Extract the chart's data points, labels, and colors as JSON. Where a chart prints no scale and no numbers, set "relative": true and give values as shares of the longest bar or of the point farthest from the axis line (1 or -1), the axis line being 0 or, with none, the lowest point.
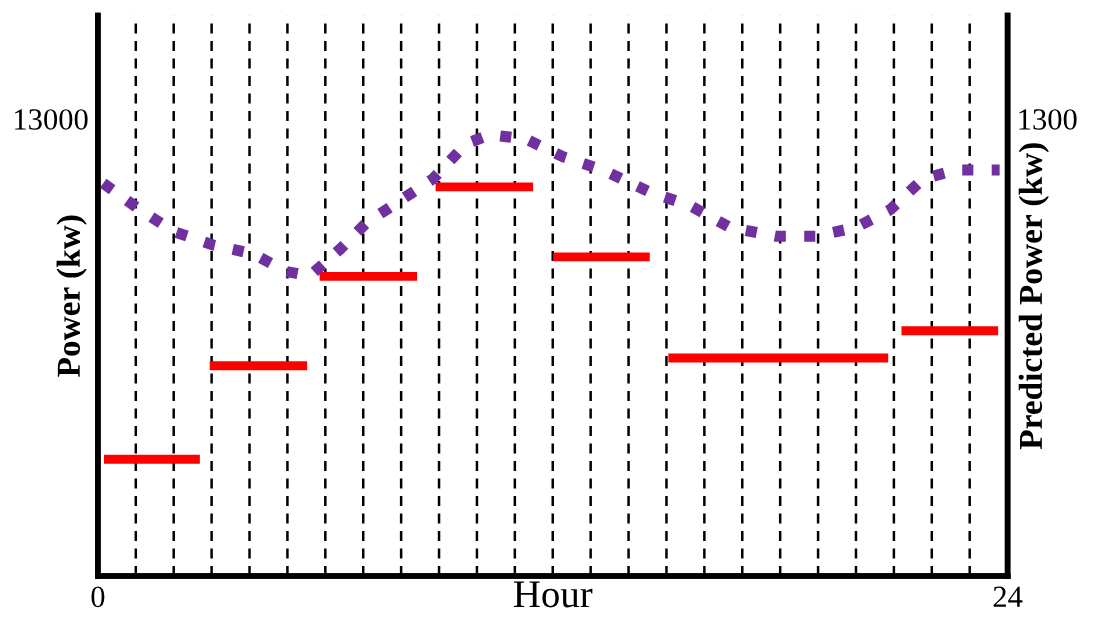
{
  "chart_data": {
    "type": "line",
    "relative": true,
    "xlabel": "Hour",
    "ylabel": "Power (kw)",
    "y2label": "Predicted Power (kw)",
    "annotations": [
      "13000",
      "1300"
    ],
    "xlim": [
      0,
      24
    ],
    "xticks": [
      0,
      {
        "value": 1,
        "label": null
      },
      {
        "value": 2,
        "label": null
      },
      {
        "value": 3,
        "label": null
      },
      {
        "value": 4,
        "label": null
      },
      {
        "value": 5,
        "label": null
      },
      {
        "value": 6,
        "label": null
      },
      {
        "value": 7,
        "label": null
      },
      {
        "value": 8,
        "label": null
      },
      {
        "value": 9,
        "label": null
      },
      {
        "value": 10,
        "label": null
      },
      {
        "value": 11,
        "label": null
      },
      {
        "value": 12,
        "label": null
      },
      {
        "value": 13,
        "label": null
      },
      {
        "value": 14,
        "label": null
      },
      {
        "value": 15,
        "label": null
      },
      {
        "value": 16,
        "label": null
      },
      {
        "value": 17,
        "label": null
      },
      {
        "value": 18,
        "label": null
      },
      {
        "value": 19,
        "label": null
      },
      {
        "value": 20,
        "label": null
      },
      {
        "value": 21,
        "label": null
      },
      {
        "value": 22,
        "label": null
      },
      {
        "value": 23,
        "label": null
      },
      24
    ],
    "grid": "x",
    "series": [
      {
        "color": "#ff0000",
        "line_style": "solid",
        "x": [
          0.16,
          2.69,
          2.8,
          2.95,
          5.52,
          5.7,
          5.85,
          8.42,
          8.7,
          8.91,
          11.48,
          11.7,
          12.01,
          14.56,
          14.8,
          15.05,
          20.85,
          21.0,
          21.2,
          23.75
        ],
        "values": [
          0.3,
          0.3,
          null,
          0.54,
          0.54,
          null,
          0.77,
          0.77,
          null,
          1,
          1,
          null,
          0.82,
          0.82,
          null,
          0.56,
          0.56,
          null,
          0.63,
          0.63
        ]
      },
      {
        "color": "#7030a0",
        "line_style": "dotted",
        "axis": "y2",
        "x": [
          0.14,
          1.11,
          2.02,
          3.04,
          4.1,
          4.97,
          5.59,
          6.38,
          7.08,
          7.96,
          8.84,
          9.72,
          10.34,
          11.3,
          12.27,
          13.33,
          14.56,
          15.61,
          16.67,
          17.9,
          18.95,
          20.0,
          20.9,
          21.77,
          22.64,
          23.79
        ],
        "values": [
          0.89,
          0.83,
          0.78,
          0.75,
          0.73,
          0.69,
          0.68,
          0.74,
          0.8,
          0.85,
          0.9,
          0.98,
          1,
          0.99,
          0.95,
          0.92,
          0.87,
          0.84,
          0.79,
          0.77,
          0.77,
          0.79,
          0.83,
          0.9,
          0.92,
          0.92
        ]
      }
    ]
  }
}
